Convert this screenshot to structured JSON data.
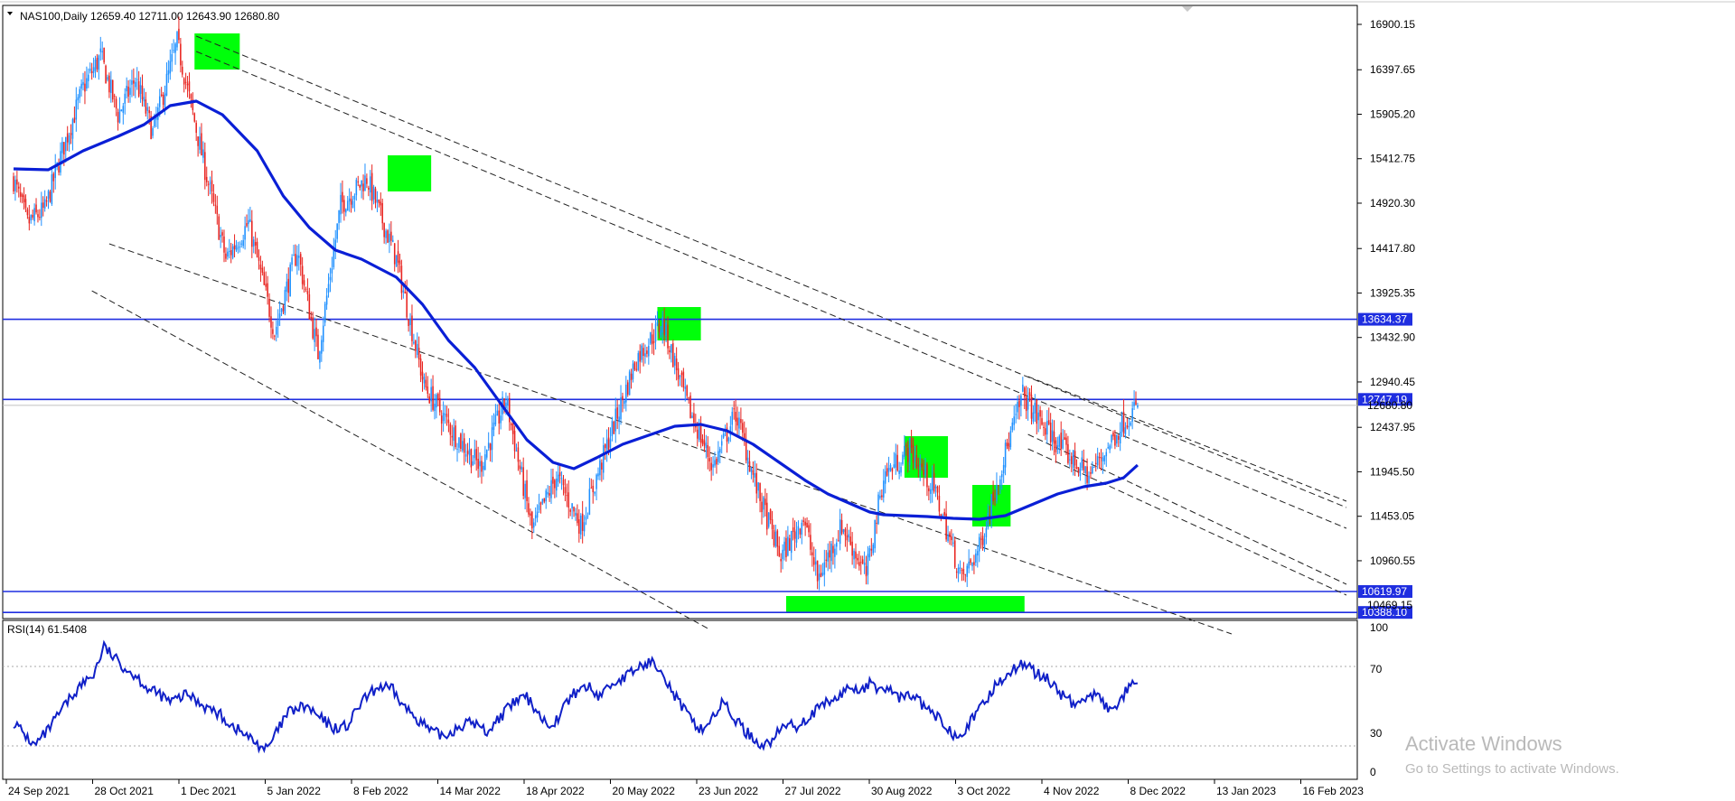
{
  "header": {
    "symbol": "NAS100,Daily",
    "ohlc": "12659.40 12711.00 12643.90 12680.80",
    "rsi_label": "RSI(14) 61.5408"
  },
  "watermark": {
    "line1": "Activate Windows",
    "line2": "Go to Settings to activate Windows."
  },
  "colors": {
    "bull": "#1e90ff",
    "bear": "#e8231f",
    "ma": "#0a1fd6",
    "level": "#1f2ee0",
    "zone": "#00ff0a",
    "rsi": "#1020c8",
    "axis_text": "#000000"
  },
  "chart_data": [
    {
      "type": "candlestick",
      "symbol": "NAS100",
      "timeframe": "Daily",
      "last_ohlc": {
        "open": 12659.4,
        "high": 12711.0,
        "low": 12643.9,
        "close": 12680.8
      },
      "y_ticks": [
        "16900.15",
        "16397.65",
        "15905.20",
        "15412.75",
        "14920.30",
        "14417.80",
        "13925.35",
        "13432.90",
        "12940.45",
        "12437.95",
        "11945.50",
        "11453.05",
        "10960.55"
      ],
      "x_ticks": [
        "24 Sep 2021",
        "28 Oct 2021",
        "1 Dec 2021",
        "5 Jan 2022",
        "8 Feb 2022",
        "14 Mar 2022",
        "18 Apr 2022",
        "20 May 2022",
        "23 Jun 2022",
        "27 Jul 2022",
        "30 Aug 2022",
        "3 Oct 2022",
        "4 Nov 2022",
        "8 Dec 2022",
        "13 Jan 2023",
        "16 Feb 2023"
      ],
      "ylim": [
        10300,
        17100
      ],
      "price_path": [
        [
          0,
          15180
        ],
        [
          8,
          14700
        ],
        [
          18,
          14850
        ],
        [
          28,
          15500
        ],
        [
          40,
          16200
        ],
        [
          50,
          16550
        ],
        [
          60,
          15900
        ],
        [
          70,
          16300
        ],
        [
          80,
          15700
        ],
        [
          94,
          16700
        ],
        [
          110,
          15300
        ],
        [
          122,
          14300
        ],
        [
          135,
          14700
        ],
        [
          150,
          13500
        ],
        [
          163,
          14400
        ],
        [
          175,
          13250
        ],
        [
          188,
          14900
        ],
        [
          203,
          15200
        ],
        [
          220,
          14300
        ],
        [
          236,
          12900
        ],
        [
          252,
          12400
        ],
        [
          268,
          12000
        ],
        [
          283,
          12750
        ],
        [
          298,
          11300
        ],
        [
          312,
          11900
        ],
        [
          326,
          11350
        ],
        [
          343,
          12350
        ],
        [
          358,
          13200
        ],
        [
          373,
          13600
        ],
        [
          387,
          12700
        ],
        [
          402,
          12000
        ],
        [
          415,
          12600
        ],
        [
          428,
          11700
        ],
        [
          441,
          11000
        ],
        [
          454,
          11450
        ],
        [
          462,
          10750
        ],
        [
          476,
          11350
        ],
        [
          490,
          10800
        ],
        [
          500,
          11900
        ],
        [
          515,
          12200
        ],
        [
          530,
          11700
        ],
        [
          545,
          10750
        ],
        [
          555,
          11100
        ],
        [
          566,
          11900
        ],
        [
          580,
          12800
        ],
        [
          590,
          12500
        ],
        [
          605,
          12150
        ],
        [
          618,
          11900
        ],
        [
          628,
          12200
        ],
        [
          638,
          12500
        ],
        [
          646,
          12680.8
        ]
      ],
      "moving_average": [
        [
          0,
          15300
        ],
        [
          20,
          15290
        ],
        [
          40,
          15500
        ],
        [
          60,
          15660
        ],
        [
          75,
          15790
        ],
        [
          90,
          16000
        ],
        [
          105,
          16050
        ],
        [
          120,
          15900
        ],
        [
          140,
          15500
        ],
        [
          155,
          15000
        ],
        [
          170,
          14650
        ],
        [
          185,
          14400
        ],
        [
          200,
          14300
        ],
        [
          220,
          14100
        ],
        [
          235,
          13800
        ],
        [
          250,
          13400
        ],
        [
          265,
          13100
        ],
        [
          280,
          12700
        ],
        [
          295,
          12300
        ],
        [
          310,
          12050
        ],
        [
          322,
          11980
        ],
        [
          335,
          12100
        ],
        [
          350,
          12250
        ],
        [
          365,
          12350
        ],
        [
          380,
          12450
        ],
        [
          395,
          12470
        ],
        [
          410,
          12400
        ],
        [
          425,
          12250
        ],
        [
          440,
          12050
        ],
        [
          455,
          11850
        ],
        [
          468,
          11700
        ],
        [
          480,
          11600
        ],
        [
          492,
          11500
        ],
        [
          500,
          11470
        ],
        [
          512,
          11460
        ],
        [
          525,
          11450
        ],
        [
          540,
          11430
        ],
        [
          555,
          11420
        ],
        [
          570,
          11460
        ],
        [
          585,
          11580
        ],
        [
          600,
          11700
        ],
        [
          615,
          11780
        ],
        [
          628,
          11820
        ],
        [
          638,
          11880
        ],
        [
          646,
          12020
        ]
      ],
      "horizontal_levels": [
        "13634.37",
        "12747.19",
        "10619.97",
        "10388.10"
      ],
      "level_extra_labels": [
        "12680.80",
        "10469.15"
      ],
      "supply_demand_zones": [
        {
          "x": [
            104,
            130
          ],
          "y": [
            16400,
            16800
          ]
        },
        {
          "x": [
            215,
            240
          ],
          "y": [
            15050,
            15450
          ]
        },
        {
          "x": [
            370,
            395
          ],
          "y": [
            13400,
            13770
          ]
        },
        {
          "x": [
            512,
            537
          ],
          "y": [
            11880,
            12340
          ]
        },
        {
          "x": [
            551,
            573
          ],
          "y": [
            11340,
            11800
          ]
        },
        {
          "x": [
            444,
            581
          ],
          "y": [
            10385,
            10570
          ]
        }
      ],
      "trend_lines": [
        {
          "from": [
            105,
            16770
          ],
          "to": [
            766,
            11550
          ]
        },
        {
          "from": [
            105,
            16600
          ],
          "to": [
            766,
            11320
          ]
        },
        {
          "from": [
            55,
            14470
          ],
          "to": [
            700,
            10150
          ]
        },
        {
          "from": [
            45,
            13950
          ],
          "to": [
            400,
            10200
          ]
        },
        {
          "from": [
            583,
            13000
          ],
          "to": [
            766,
            11620
          ]
        },
        {
          "from": [
            583,
            12360
          ],
          "to": [
            766,
            10700
          ]
        },
        {
          "from": [
            583,
            12200
          ],
          "to": [
            766,
            10580
          ]
        }
      ]
    },
    {
      "type": "line",
      "name": "RSI(14)",
      "value": 61.5408,
      "y_ticks": [
        "100",
        "70",
        "30",
        "0"
      ],
      "levels": [
        70,
        30
      ],
      "ylim": [
        0,
        100
      ],
      "series": [
        [
          0,
          42
        ],
        [
          6,
          36
        ],
        [
          12,
          30
        ],
        [
          20,
          38
        ],
        [
          30,
          51
        ],
        [
          38,
          60
        ],
        [
          46,
          66
        ],
        [
          52,
          80
        ],
        [
          58,
          74
        ],
        [
          66,
          68
        ],
        [
          72,
          64
        ],
        [
          78,
          58
        ],
        [
          84,
          56
        ],
        [
          90,
          52
        ],
        [
          100,
          56
        ],
        [
          110,
          50
        ],
        [
          118,
          46
        ],
        [
          126,
          40
        ],
        [
          134,
          35
        ],
        [
          140,
          31
        ],
        [
          146,
          28
        ],
        [
          150,
          35
        ],
        [
          158,
          47
        ],
        [
          168,
          50
        ],
        [
          176,
          44
        ],
        [
          184,
          39
        ],
        [
          192,
          40
        ],
        [
          200,
          52
        ],
        [
          210,
          60
        ],
        [
          218,
          58
        ],
        [
          224,
          50
        ],
        [
          232,
          44
        ],
        [
          240,
          37
        ],
        [
          248,
          35
        ],
        [
          256,
          40
        ],
        [
          264,
          42
        ],
        [
          272,
          37
        ],
        [
          280,
          45
        ],
        [
          288,
          52
        ],
        [
          294,
          55
        ],
        [
          300,
          49
        ],
        [
          306,
          41
        ],
        [
          312,
          43
        ],
        [
          318,
          52
        ],
        [
          324,
          58
        ],
        [
          330,
          60
        ],
        [
          336,
          55
        ],
        [
          342,
          60
        ],
        [
          348,
          63
        ],
        [
          354,
          66
        ],
        [
          360,
          70
        ],
        [
          366,
          72
        ],
        [
          372,
          70
        ],
        [
          378,
          58
        ],
        [
          384,
          50
        ],
        [
          390,
          42
        ],
        [
          396,
          38
        ],
        [
          402,
          45
        ],
        [
          408,
          52
        ],
        [
          414,
          44
        ],
        [
          420,
          38
        ],
        [
          426,
          33
        ],
        [
          432,
          30
        ],
        [
          438,
          35
        ],
        [
          444,
          41
        ],
        [
          450,
          40
        ],
        [
          456,
          44
        ],
        [
          462,
          48
        ],
        [
          468,
          52
        ],
        [
          474,
          54
        ],
        [
          480,
          60
        ],
        [
          486,
          58
        ],
        [
          492,
          61
        ],
        [
          498,
          59
        ],
        [
          504,
          58
        ],
        [
          510,
          54
        ],
        [
          516,
          56
        ],
        [
          522,
          51
        ],
        [
          528,
          46
        ],
        [
          534,
          42
        ],
        [
          540,
          36
        ],
        [
          546,
          38
        ],
        [
          552,
          44
        ],
        [
          558,
          52
        ],
        [
          564,
          60
        ],
        [
          570,
          66
        ],
        [
          576,
          69
        ],
        [
          582,
          72
        ],
        [
          588,
          66
        ],
        [
          594,
          64
        ],
        [
          600,
          58
        ],
        [
          606,
          53
        ],
        [
          612,
          50
        ],
        [
          618,
          57
        ],
        [
          624,
          54
        ],
        [
          630,
          47
        ],
        [
          636,
          53
        ],
        [
          642,
          61
        ],
        [
          646,
          61.5408
        ]
      ]
    }
  ]
}
